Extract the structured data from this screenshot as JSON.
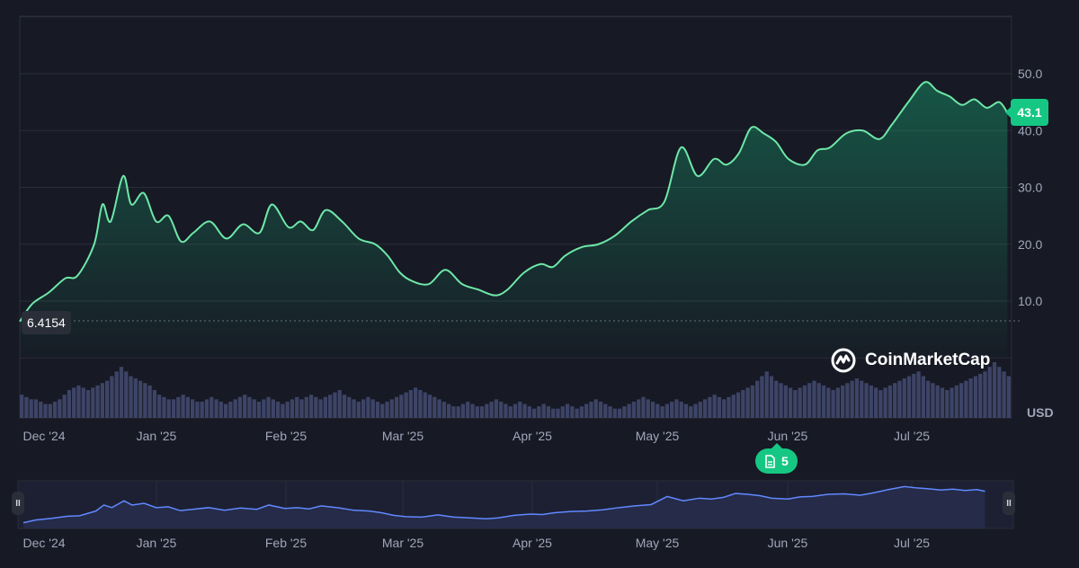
{
  "chart_data": [
    {
      "type": "area",
      "currency": "USD",
      "x_tick_labels": [
        "Dec '24",
        "Jan '25",
        "Feb '25",
        "Mar '25",
        "Apr '25",
        "May '25",
        "Jun '25",
        "Jul '25"
      ],
      "y_tick_labels": [
        "10.0",
        "20.0",
        "30.0",
        "40.0",
        "50.0"
      ],
      "ylim": [
        0,
        60
      ],
      "grid": true,
      "last_price": "43.1",
      "reference_price": "6.4154",
      "series": [
        {
          "x": [
            "2024-12-01",
            "2024-12-04",
            "2024-12-08",
            "2024-12-12",
            "2024-12-15",
            "2024-12-19",
            "2024-12-21",
            "2024-12-23",
            "2024-12-26",
            "2024-12-28",
            "2024-12-31",
            "2025-01-03",
            "2025-01-06",
            "2025-01-09",
            "2025-01-12",
            "2025-01-16",
            "2025-01-20",
            "2025-01-24",
            "2025-01-28",
            "2025-01-31",
            "2025-02-04",
            "2025-02-07",
            "2025-02-10",
            "2025-02-13",
            "2025-02-17",
            "2025-02-21",
            "2025-02-25",
            "2025-02-28",
            "2025-03-03",
            "2025-03-06",
            "2025-03-10",
            "2025-03-14",
            "2025-03-18",
            "2025-03-22",
            "2025-03-26",
            "2025-03-29",
            "2025-04-02",
            "2025-04-06",
            "2025-04-09",
            "2025-04-12",
            "2025-04-16",
            "2025-04-20",
            "2025-04-24",
            "2025-04-28",
            "2025-05-02",
            "2025-05-06",
            "2025-05-10",
            "2025-05-14",
            "2025-05-18",
            "2025-05-21",
            "2025-05-24",
            "2025-05-27",
            "2025-05-30",
            "2025-06-02",
            "2025-06-05",
            "2025-06-09",
            "2025-06-12",
            "2025-06-15",
            "2025-06-19",
            "2025-06-23",
            "2025-06-27",
            "2025-06-30",
            "2025-07-04",
            "2025-07-08",
            "2025-07-11",
            "2025-07-14",
            "2025-07-17",
            "2025-07-20",
            "2025-07-23",
            "2025-07-26",
            "2025-07-28"
          ],
          "values": [
            6.4,
            9.5,
            11.5,
            14.0,
            14.5,
            20.0,
            27.0,
            24.0,
            32.0,
            27.0,
            29.0,
            24.0,
            25.0,
            20.5,
            22.0,
            24.0,
            21.0,
            23.5,
            22.0,
            27.0,
            23.0,
            24.0,
            22.5,
            26.0,
            24.0,
            21.0,
            20.0,
            18.0,
            15.0,
            13.5,
            13.0,
            15.5,
            13.0,
            12.0,
            11.0,
            12.0,
            15.0,
            16.5,
            16.0,
            18.0,
            19.5,
            20.0,
            21.5,
            24.0,
            26.0,
            27.5,
            37.0,
            32.0,
            35.0,
            34.0,
            36.0,
            40.5,
            39.5,
            38.0,
            35.0,
            34.0,
            36.5,
            37.0,
            39.5,
            40.0,
            38.5,
            41.0,
            45.0,
            48.5,
            47.0,
            46.0,
            44.5,
            45.5,
            44.0,
            45.0,
            43.1
          ]
        }
      ],
      "volume": [
        10,
        9,
        8,
        8,
        7,
        6,
        6,
        7,
        8,
        10,
        12,
        13,
        14,
        13,
        12,
        13,
        14,
        15,
        16,
        18,
        20,
        22,
        20,
        18,
        17,
        16,
        15,
        14,
        12,
        10,
        9,
        8,
        8,
        9,
        10,
        9,
        8,
        7,
        7,
        8,
        9,
        8,
        7,
        6,
        7,
        8,
        9,
        10,
        9,
        8,
        7,
        8,
        9,
        8,
        7,
        6,
        7,
        8,
        9,
        8,
        9,
        10,
        9,
        8,
        9,
        10,
        11,
        12,
        10,
        9,
        8,
        7,
        8,
        9,
        8,
        7,
        6,
        7,
        8,
        9,
        10,
        11,
        12,
        13,
        12,
        11,
        10,
        9,
        8,
        7,
        6,
        5,
        5,
        6,
        7,
        6,
        5,
        5,
        6,
        7,
        8,
        7,
        6,
        5,
        6,
        7,
        6,
        5,
        4,
        5,
        6,
        5,
        4,
        4,
        5,
        6,
        5,
        4,
        5,
        6,
        7,
        8,
        7,
        6,
        5,
        4,
        4,
        5,
        6,
        7,
        8,
        9,
        8,
        7,
        6,
        5,
        6,
        7,
        8,
        7,
        6,
        5,
        6,
        7,
        8,
        9,
        10,
        9,
        8,
        9,
        10,
        11,
        12,
        13,
        14,
        16,
        18,
        20,
        18,
        16,
        15,
        14,
        13,
        12,
        13,
        14,
        15,
        16,
        15,
        14,
        13,
        12,
        13,
        14,
        15,
        16,
        17,
        16,
        15,
        14,
        13,
        12,
        13,
        14,
        15,
        16,
        17,
        18,
        19,
        20,
        18,
        16,
        15,
        14,
        13,
        12,
        13,
        14,
        15,
        16,
        17,
        18,
        19,
        20,
        22,
        24,
        22,
        20,
        18
      ],
      "navigator": {
        "x_tick_labels": [
          "Dec '24",
          "Jan '25",
          "Feb '25",
          "Mar '25",
          "Apr '25",
          "May '25",
          "Jun '25",
          "Jul '25"
        ]
      }
    }
  ],
  "overlays": {
    "brand": "CoinMarketCap",
    "news_count": "5",
    "handle_left": "II",
    "handle_right": "II"
  },
  "colors": {
    "background": "#171924",
    "line": "#16c784",
    "line_light": "#6ee7a8",
    "grid": "#2a2e39",
    "volume": "#3d4466",
    "navigator_line": "#6188ff",
    "navigator_fill": "#252b48",
    "axis_text": "#a1a7bb"
  }
}
